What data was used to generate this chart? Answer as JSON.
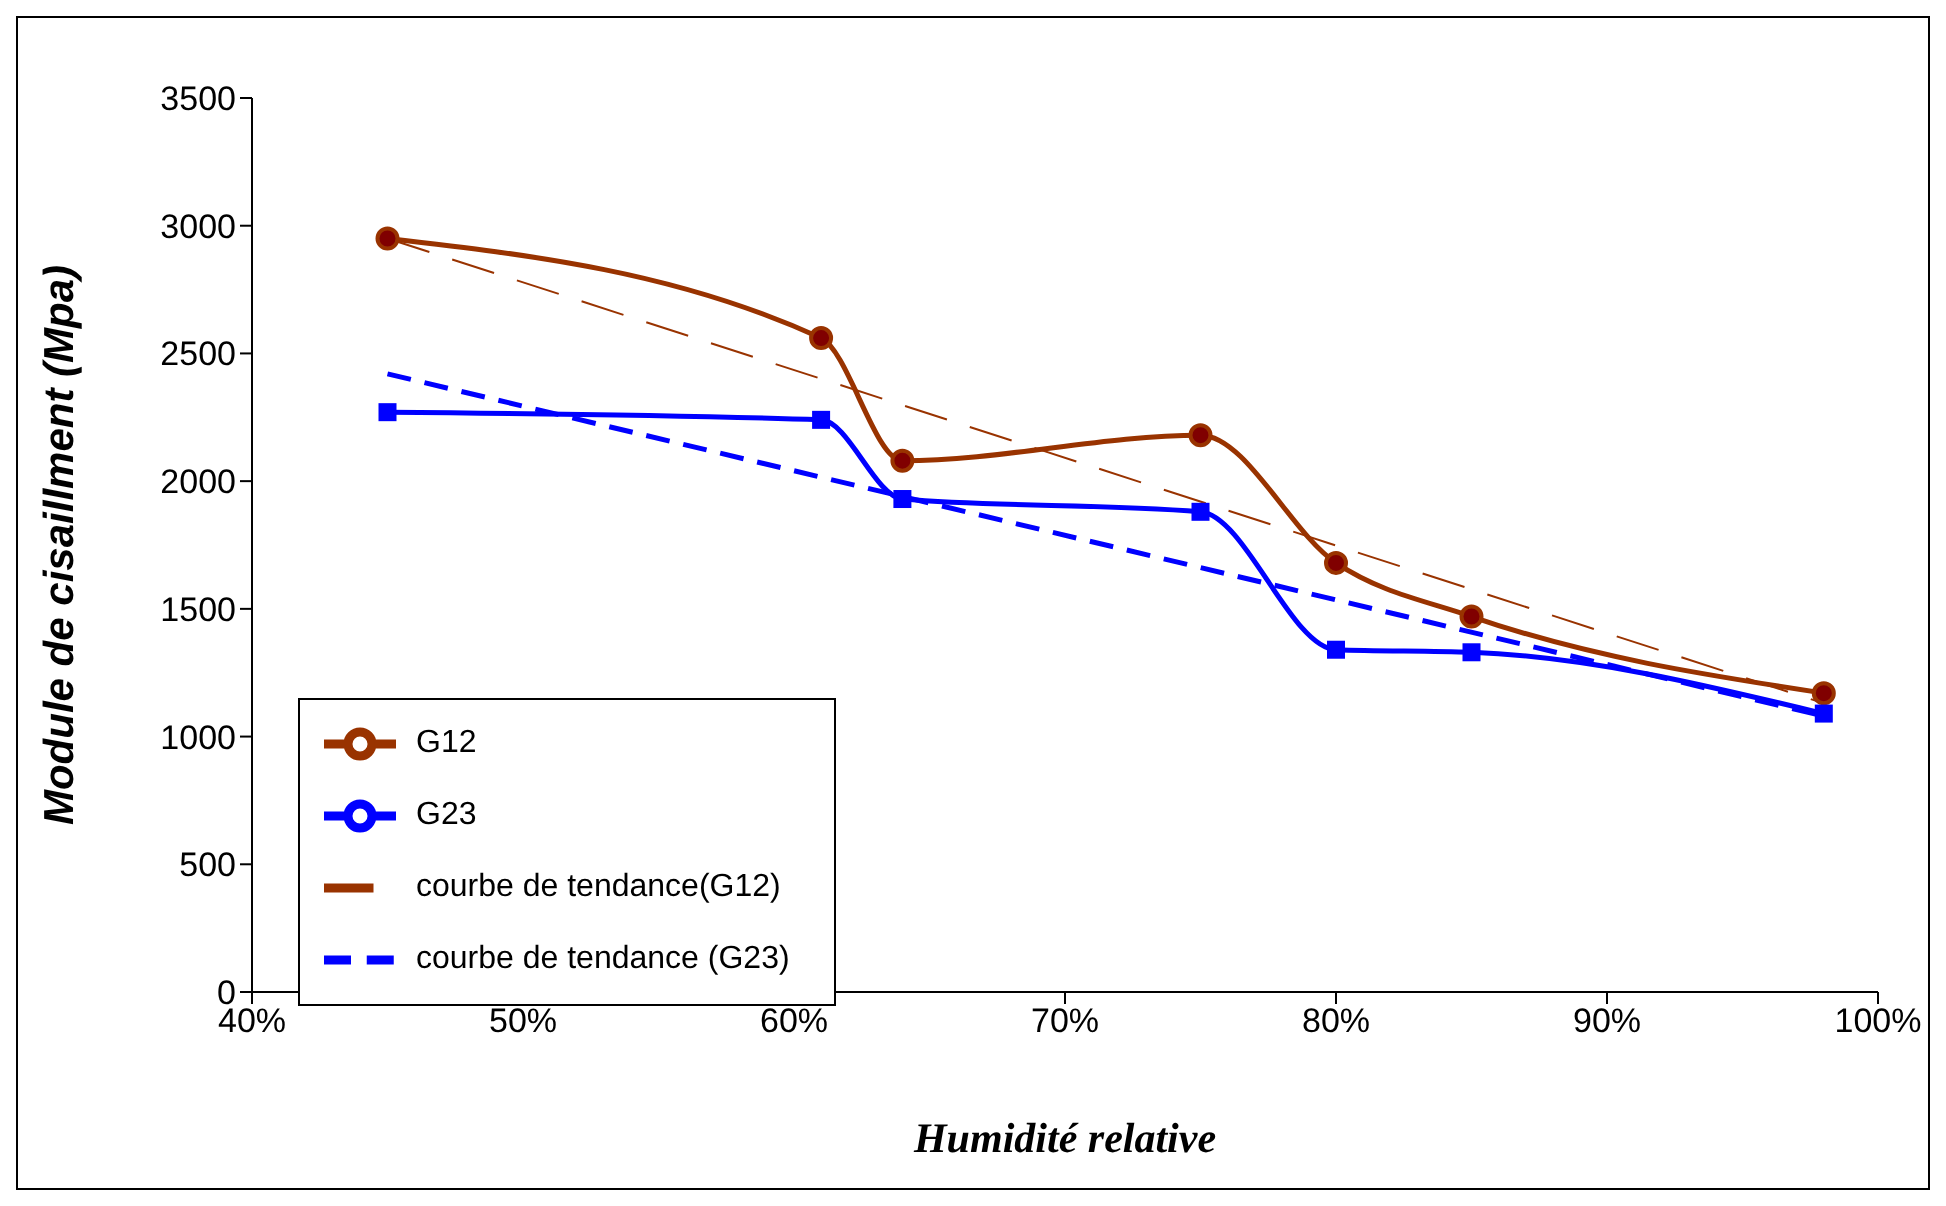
{
  "chart_data": {
    "type": "line",
    "xlabel": "Humidité relative",
    "ylabel": "Module de cisaillment (Mpa)",
    "xlim": [
      40,
      100
    ],
    "xticks": [
      {
        "value": 40,
        "label": "40%"
      },
      {
        "value": 50,
        "label": "50%"
      },
      {
        "value": 60,
        "label": "60%"
      },
      {
        "value": 70,
        "label": "70%"
      },
      {
        "value": 80,
        "label": "80%"
      },
      {
        "value": 90,
        "label": "90%"
      },
      {
        "value": 100,
        "label": "100%"
      }
    ],
    "ylim": [
      0,
      3500
    ],
    "yticks": [
      0,
      500,
      1000,
      1500,
      2000,
      2500,
      3000,
      3500
    ],
    "grid": false,
    "legend": "bottom left",
    "series": [
      {
        "name": "G12",
        "color": "#993300",
        "marker": "circle",
        "line_style": "solid",
        "x": [
          45,
          61,
          64,
          75,
          80,
          85,
          98
        ],
        "values": [
          2950,
          2560,
          2080,
          2180,
          1680,
          1470,
          1170
        ]
      },
      {
        "name": "G23",
        "color": "#0000ff",
        "marker": "square",
        "line_style": "solid",
        "x": [
          45,
          61,
          64,
          75,
          80,
          85,
          98
        ],
        "values": [
          2270,
          2240,
          1930,
          1880,
          1340,
          1330,
          1090
        ]
      },
      {
        "name": "courbe de tendance(G12)",
        "color": "#993300",
        "marker": "none",
        "line_style": "dashed",
        "x": [
          45,
          98
        ],
        "values": [
          2950,
          1130
        ]
      },
      {
        "name": "courbe de tendance (G23)",
        "color": "#0000ff",
        "marker": "none",
        "line_style": "dashed",
        "x": [
          45,
          98
        ],
        "values": [
          2420,
          1080
        ]
      }
    ]
  }
}
